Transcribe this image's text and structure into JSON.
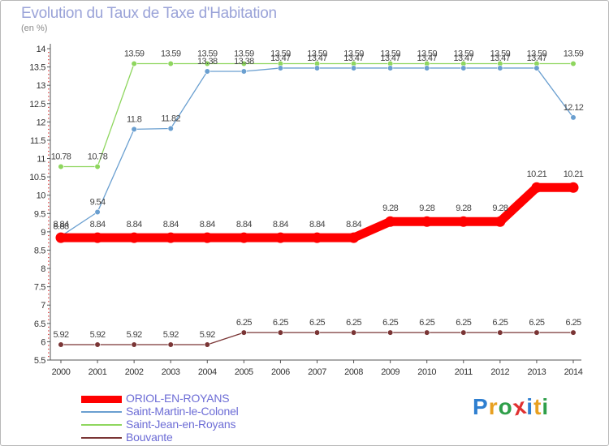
{
  "chart_data": {
    "type": "line",
    "title": "Evolution du Taux de Taxe d'Habitation",
    "subtitle": "(en %)",
    "xlabel": "",
    "ylabel": "",
    "x": [
      "2000",
      "2001",
      "2002",
      "2003",
      "2004",
      "2005",
      "2006",
      "2007",
      "2008",
      "2009",
      "2010",
      "2011",
      "2012",
      "2013",
      "2014"
    ],
    "ylim": [
      5.5,
      14
    ],
    "ystep": 0.5,
    "yticks": [
      "5.5",
      "6",
      "6.5",
      "7",
      "7.5",
      "8",
      "8.5",
      "9",
      "9.5",
      "10",
      "10.5",
      "11",
      "11.5",
      "12",
      "12.5",
      "13",
      "13.5",
      "14"
    ],
    "grid": false,
    "legend_position": "bottom-left",
    "series": [
      {
        "name": "ORIOL-EN-ROYANS",
        "color": "#ff0000",
        "values": [
          8.84,
          8.84,
          8.84,
          8.84,
          8.84,
          8.84,
          8.84,
          8.84,
          8.84,
          9.28,
          9.28,
          9.28,
          9.28,
          10.21,
          10.21
        ],
        "labels": [
          "8.84",
          "8.84",
          "8.84",
          "8.84",
          "8.84",
          "8.84",
          "8.84",
          "8.84",
          "8.84",
          "9.28",
          "9.28",
          "9.28",
          "9.28",
          "10.21",
          "10.21"
        ]
      },
      {
        "name": "Saint-Martin-le-Colonel",
        "color": "#6a9fd0",
        "values": [
          8.88,
          9.54,
          11.8,
          11.82,
          13.38,
          13.38,
          13.47,
          13.47,
          13.47,
          13.47,
          13.47,
          13.47,
          13.47,
          13.47,
          12.12
        ],
        "labels": [
          "8.88",
          "9.54",
          "11.8",
          "11.82",
          "13.38",
          "13.38",
          "13.47",
          "13.47",
          "13.47",
          "13.47",
          "13.47",
          "13.47",
          "13.47",
          "13.47",
          "12.12"
        ]
      },
      {
        "name": "Saint-Jean-en-Royans",
        "color": "#8ed65e",
        "values": [
          10.78,
          10.78,
          13.59,
          13.59,
          13.59,
          13.59,
          13.59,
          13.59,
          13.59,
          13.59,
          13.59,
          13.59,
          13.59,
          13.59,
          13.59
        ],
        "labels": [
          "10.78",
          "10.78",
          "13.59",
          "13.59",
          "13.59",
          "13.59",
          "13.59",
          "13.59",
          "13.59",
          "13.59",
          "13.59",
          "13.59",
          "13.59",
          "13.59",
          "13.59"
        ]
      },
      {
        "name": "Bouvante",
        "color": "#7a3535",
        "values": [
          5.92,
          5.92,
          5.92,
          5.92,
          5.92,
          6.25,
          6.25,
          6.25,
          6.25,
          6.25,
          6.25,
          6.25,
          6.25,
          6.25,
          6.25
        ],
        "labels": [
          "5.92",
          "5.92",
          "5.92",
          "5.92",
          "5.92",
          "6.25",
          "6.25",
          "6.25",
          "6.25",
          "6.25",
          "6.25",
          "6.25",
          "6.25",
          "6.25",
          "6.25"
        ]
      }
    ]
  },
  "brand": {
    "letters": [
      "P",
      "r",
      "o",
      "x",
      "i",
      "t",
      "i"
    ],
    "colors": [
      "#2f7fd0",
      "#e8a020",
      "#2f9f4a",
      "#e03030",
      "#2f7fd0",
      "#e8a020",
      "#2f9f4a"
    ]
  }
}
